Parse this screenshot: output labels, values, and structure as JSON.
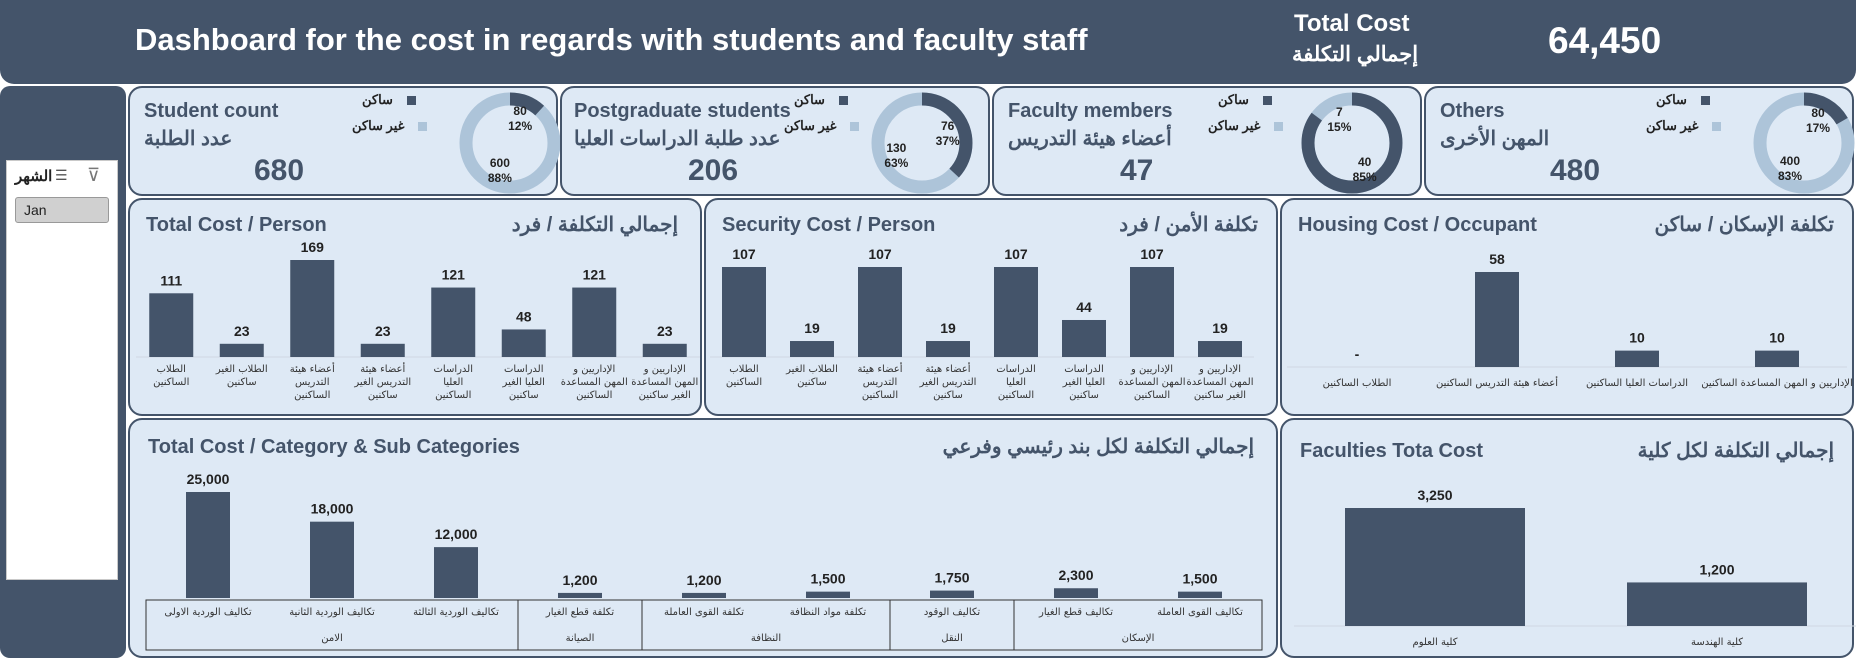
{
  "header": {
    "title": "Dashboard for the cost in regards with students and faculty staff",
    "total_en": "Total Cost",
    "total_ar": "إجمالي التكلفة",
    "total_value": "64,450"
  },
  "slicer": {
    "label": "الشهر",
    "items": [
      "Jan"
    ]
  },
  "legend": {
    "resident": "ساكن",
    "non_resident": "غير ساكن"
  },
  "colors": {
    "dark": "#44546a",
    "light": "#adc4d9",
    "panel": "#dee9f5"
  },
  "kpis": [
    {
      "en": "Student count",
      "ar": "عدد الطلبة",
      "value": "680",
      "resident": 80,
      "resident_pct": "12%",
      "non_resident": 600,
      "non_resident_pct": "88%"
    },
    {
      "en": "Postgraduate students",
      "ar": "عدد طلبة الدراسات العليا",
      "value": "206",
      "resident": 76,
      "resident_pct": "37%",
      "non_resident": 130,
      "non_resident_pct": "63%"
    },
    {
      "en": "Faculty members",
      "ar": "أعضاء هيئة التدريس",
      "value": "47",
      "resident": 40,
      "resident_pct": "85%",
      "non_resident": 7,
      "non_resident_pct": "15%"
    },
    {
      "en": "Others",
      "ar": "المهن الأخرى",
      "value": "480",
      "resident": 80,
      "resident_pct": "17%",
      "non_resident": 400,
      "non_resident_pct": "83%"
    }
  ],
  "chart_data": [
    {
      "id": "total_cost_person",
      "type": "bar",
      "title": "Total Cost / Person",
      "title_ar": "إجمالي التكلفة / فرد",
      "categories": [
        "الطلاب الساكنين",
        "الطلاب الغير ساكنين",
        "أعضاء هيئة التدريس الساكنين",
        "أعضاء هيئة التدريس الغير ساكنين",
        "الدراسات العليا الساكنين",
        "الدراسات العليا الغير ساكنين",
        "الإداريين و المهن المساعدة الساكنين",
        "الإداريين و المهن المساعدة الغير ساكنين"
      ],
      "values": [
        111,
        23,
        169,
        23,
        121,
        48,
        121,
        23
      ],
      "labels": [
        "111",
        "23",
        "169",
        "23",
        "121",
        "48",
        "121",
        "23"
      ],
      "ylim": [
        0,
        169
      ]
    },
    {
      "id": "security_cost_person",
      "type": "bar",
      "title": "Security Cost / Person",
      "title_ar": "تكلفة الأمن / فرد",
      "categories": [
        "الطلاب الساكنين",
        "الطلاب الغير ساكنين",
        "أعضاء هيئة التدريس الساكنين",
        "أعضاء هيئة التدريس الغير ساكنين",
        "الدراسات العليا الساكنين",
        "الدراسات العليا الغير ساكنين",
        "الإداريين و المهن المساعدة الساكنين",
        "الإداريين و المهن المساعدة الغير ساكنين"
      ],
      "values": [
        107,
        19,
        107,
        19,
        107,
        44,
        107,
        19
      ],
      "labels": [
        "107",
        "19",
        "107",
        "19",
        "107",
        "44",
        "107",
        "19"
      ],
      "ylim": [
        0,
        107
      ]
    },
    {
      "id": "housing_cost_occupant",
      "type": "bar",
      "title": "Housing Cost / Occupant",
      "title_ar": "تكلفة الإسكان / ساكن",
      "categories": [
        "الطلاب الساكنين",
        "أعضاء هيئة التدريس الساكنين",
        "الدراسات العليا الساكنين",
        "الإداريين و المهن المساعدة الساكنين"
      ],
      "values": [
        0,
        58,
        10,
        10
      ],
      "labels": [
        "-",
        "58",
        "10",
        "10"
      ],
      "ylim": [
        0,
        58
      ]
    },
    {
      "id": "total_cost_category",
      "type": "bar",
      "title": "Total Cost / Category & Sub Categories",
      "title_ar": "إجمالي التكلفة لكل بند رئيسي وفرعي",
      "categories": [
        "تكاليف الوردية الاولى",
        "تكاليف الوردية الثانية",
        "تكاليف الوردية الثالثة",
        "تكلفة قطع الغيار",
        "تكلفة القوى العاملة",
        "تكلفة مواد النظافة",
        "تكاليف الوقود",
        "تكاليف قطع الغيار",
        "تكاليف القوى العاملة"
      ],
      "groups": [
        {
          "name": "الامن",
          "count": 3
        },
        {
          "name": "الصيانة",
          "count": 1
        },
        {
          "name": "النظافة",
          "count": 2
        },
        {
          "name": "النقل",
          "count": 1
        },
        {
          "name": "الإسكان",
          "count": 2
        }
      ],
      "values": [
        25000,
        18000,
        12000,
        1200,
        1200,
        1500,
        1750,
        2300,
        1500
      ],
      "labels": [
        "25,000",
        "18,000",
        "12,000",
        "1,200",
        "1,200",
        "1,500",
        "1,750",
        "2,300",
        "1,500"
      ],
      "ylim": [
        0,
        25000
      ]
    },
    {
      "id": "faculties_total_cost",
      "type": "bar",
      "title": "Faculties Tota Cost",
      "title_ar": "إجمالي التكلفة لكل كلية",
      "categories": [
        "كلية العلوم",
        "كلية الهندسة"
      ],
      "values": [
        3250,
        1200
      ],
      "labels": [
        "3,250",
        "1,200"
      ],
      "ylim": [
        0,
        3250
      ]
    }
  ]
}
